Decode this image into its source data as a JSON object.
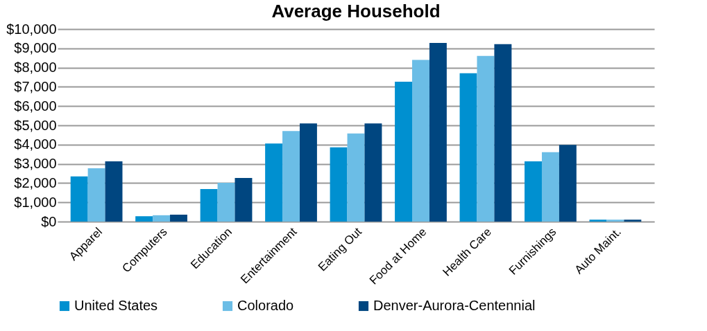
{
  "chart_data": {
    "type": "bar",
    "title": "Average Household",
    "categories": [
      "Apparel",
      "Computers",
      "Education",
      "Entertainment",
      "Eating Out",
      "Food at Home",
      "Health Care",
      "Furnishings",
      "Auto Maint."
    ],
    "series": [
      {
        "name": "United States",
        "color": "#0090d0",
        "values": [
          2350,
          280,
          1690,
          4060,
          3860,
          7270,
          7710,
          3130,
          100
        ]
      },
      {
        "name": "Colorado",
        "color": "#6bbde6",
        "values": [
          2770,
          330,
          2010,
          4700,
          4580,
          8400,
          8610,
          3610,
          100
        ]
      },
      {
        "name": "Denver-Aurora-Centennial",
        "color": "#004680",
        "values": [
          3130,
          360,
          2270,
          5100,
          5100,
          9280,
          9220,
          3980,
          100
        ]
      }
    ],
    "ylim": [
      0,
      10000
    ],
    "yticks": [
      {
        "value": 0,
        "label": "$0"
      },
      {
        "value": 1000,
        "label": "$1,000"
      },
      {
        "value": 2000,
        "label": "$2,000"
      },
      {
        "value": 3000,
        "label": "$3,000"
      },
      {
        "value": 4000,
        "label": "$4,000"
      },
      {
        "value": 5000,
        "label": "$5,000"
      },
      {
        "value": 6000,
        "label": "$6,000"
      },
      {
        "value": 7000,
        "label": "$7,000"
      },
      {
        "value": 8000,
        "label": "$8,000"
      },
      {
        "value": 9000,
        "label": "$9,000"
      },
      {
        "value": 10000,
        "label": "$10,000"
      }
    ],
    "grid": "y",
    "legend": "bottom"
  }
}
